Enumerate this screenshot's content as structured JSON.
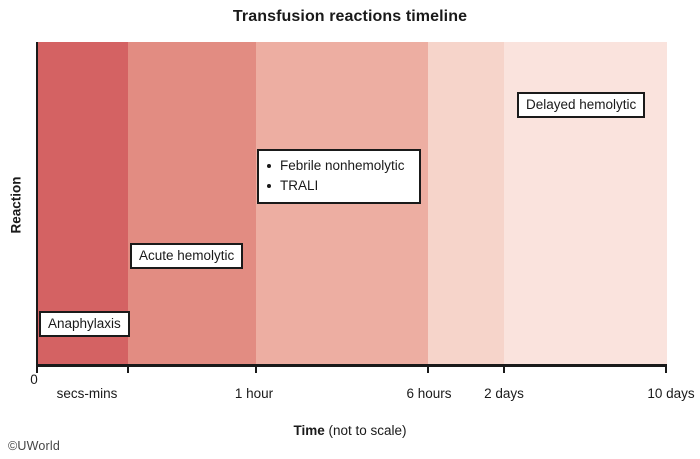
{
  "footer": {
    "copyright": "©UWorld"
  },
  "chart_data": {
    "type": "bar",
    "subtype": "qualitative-timeline-bands",
    "title": "Transfusion reactions timeline",
    "xlabel": "Time (not to scale)",
    "xlabel_bold": "Time",
    "xlabel_note": " (not to scale)",
    "ylabel": "Reaction",
    "x_ticks": [
      "0",
      "secs-mins",
      "1 hour",
      "6 hours",
      "2 days",
      "10 days"
    ],
    "grid": false,
    "legend": false,
    "segments": [
      {
        "interval": [
          "0",
          "secs-mins"
        ],
        "labels": [
          "Anaphylaxis"
        ],
        "color": "#d46263"
      },
      {
        "interval": [
          "secs-mins",
          "1 hour"
        ],
        "labels": [
          "Acute hemolytic"
        ],
        "color": "#e28c82"
      },
      {
        "interval": [
          "1 hour",
          "6 hours"
        ],
        "labels": [
          "Febrile nonhemolytic",
          "TRALI"
        ],
        "color": "#edaea2"
      },
      {
        "interval": [
          "6 hours",
          "2 days"
        ],
        "labels": [],
        "color": "#f6d4ca"
      },
      {
        "interval": [
          "2 days",
          "10 days"
        ],
        "labels": [
          "Delayed hemolytic"
        ],
        "color": "#fae3dd"
      }
    ]
  }
}
